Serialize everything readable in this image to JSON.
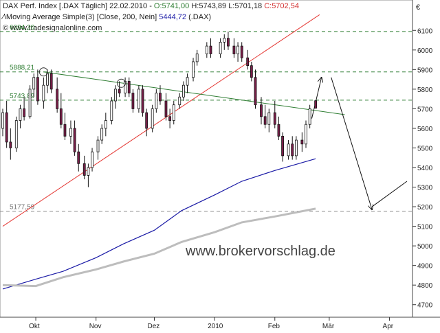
{
  "header": {
    "instrument": "DAX Perf. Index [.DAX  Täglich] 22.02.2010 - ",
    "open": "O:5741,00",
    "high": "H:5743,89",
    "low": "L:5701,18",
    "close": "C:5702,54",
    "ma_line": "Moving Average Simple(3) [Close, 200, Nein] ",
    "ma_value": "5444,72",
    "ma_tail": " (.DAX)",
    "copyright": "© www.tradesignalonline.com",
    "currency_symbol": "€"
  },
  "watermark": "www.brokervorschlag.de",
  "chart_data": {
    "type": "candlestick",
    "ylim": [
      4650,
      6150
    ],
    "ytick_values": [
      6100,
      6000,
      5900,
      5800,
      5700,
      5600,
      5500,
      5400,
      5300,
      5200,
      5100,
      5000,
      4900,
      4800,
      4700
    ],
    "ytick_labels": [
      "6100",
      "6000",
      "5900",
      "5800",
      "5700",
      "5600",
      "5500",
      "5400",
      "5300",
      "5200",
      "5100",
      "5000",
      "4900",
      "4800",
      "4700"
    ],
    "xtick_labels": [
      "Okt",
      "Nov",
      "Dez",
      "2010",
      "Feb",
      "Mär",
      "Apr"
    ],
    "xtick_dates": [
      "2009-10-01",
      "2009-11-01",
      "2009-12-01",
      "2010-01-01",
      "2010-02-01",
      "2010-03-01",
      "2010-04-01"
    ],
    "x_range": [
      "2009-09-14",
      "2010-04-10"
    ],
    "levels": [
      {
        "value": 6094.2,
        "label": "6094,20",
        "color": "#2e7d32",
        "style": "dashed"
      },
      {
        "value": 5888.21,
        "label": "5888,21",
        "color": "#2e7d32",
        "style": "dashed"
      },
      {
        "value": 5743.89,
        "label": "5743,89",
        "color": "#2e7d32",
        "style": "dashed"
      },
      {
        "value": 5177.59,
        "label": "5177,59",
        "color": "#888888",
        "style": "dashed"
      }
    ],
    "candles": [
      {
        "date": "2009-09-14",
        "o": 5600,
        "h": 5700,
        "l": 5560,
        "c": 5680
      },
      {
        "date": "2009-09-16",
        "o": 5680,
        "h": 5740,
        "l": 5500,
        "c": 5530
      },
      {
        "date": "2009-09-18",
        "o": 5530,
        "h": 5600,
        "l": 5440,
        "c": 5500
      },
      {
        "date": "2009-09-21",
        "o": 5500,
        "h": 5660,
        "l": 5480,
        "c": 5640
      },
      {
        "date": "2009-09-23",
        "o": 5640,
        "h": 5720,
        "l": 5600,
        "c": 5700
      },
      {
        "date": "2009-09-25",
        "o": 5700,
        "h": 5760,
        "l": 5640,
        "c": 5660
      },
      {
        "date": "2009-09-28",
        "o": 5660,
        "h": 5820,
        "l": 5650,
        "c": 5800
      },
      {
        "date": "2009-09-30",
        "o": 5800,
        "h": 5880,
        "l": 5760,
        "c": 5860
      },
      {
        "date": "2009-10-02",
        "o": 5860,
        "h": 5900,
        "l": 5720,
        "c": 5740
      },
      {
        "date": "2009-10-05",
        "o": 5740,
        "h": 5860,
        "l": 5700,
        "c": 5820
      },
      {
        "date": "2009-10-07",
        "o": 5820,
        "h": 5900,
        "l": 5780,
        "c": 5880
      },
      {
        "date": "2009-10-09",
        "o": 5880,
        "h": 5900,
        "l": 5780,
        "c": 5800
      },
      {
        "date": "2009-10-12",
        "o": 5800,
        "h": 5860,
        "l": 5680,
        "c": 5700
      },
      {
        "date": "2009-10-14",
        "o": 5700,
        "h": 5780,
        "l": 5600,
        "c": 5620
      },
      {
        "date": "2009-10-16",
        "o": 5620,
        "h": 5680,
        "l": 5540,
        "c": 5560
      },
      {
        "date": "2009-10-19",
        "o": 5560,
        "h": 5640,
        "l": 5520,
        "c": 5600
      },
      {
        "date": "2009-10-21",
        "o": 5600,
        "h": 5640,
        "l": 5460,
        "c": 5480
      },
      {
        "date": "2009-10-23",
        "o": 5480,
        "h": 5520,
        "l": 5380,
        "c": 5420
      },
      {
        "date": "2009-10-26",
        "o": 5420,
        "h": 5460,
        "l": 5340,
        "c": 5360
      },
      {
        "date": "2009-10-28",
        "o": 5360,
        "h": 5420,
        "l": 5300,
        "c": 5400
      },
      {
        "date": "2009-10-30",
        "o": 5400,
        "h": 5500,
        "l": 5380,
        "c": 5480
      },
      {
        "date": "2009-11-02",
        "o": 5480,
        "h": 5560,
        "l": 5440,
        "c": 5540
      },
      {
        "date": "2009-11-04",
        "o": 5540,
        "h": 5620,
        "l": 5520,
        "c": 5600
      },
      {
        "date": "2009-11-06",
        "o": 5600,
        "h": 5680,
        "l": 5560,
        "c": 5640
      },
      {
        "date": "2009-11-09",
        "o": 5640,
        "h": 5760,
        "l": 5620,
        "c": 5740
      },
      {
        "date": "2009-11-11",
        "o": 5740,
        "h": 5820,
        "l": 5700,
        "c": 5800
      },
      {
        "date": "2009-11-13",
        "o": 5800,
        "h": 5840,
        "l": 5760,
        "c": 5780
      },
      {
        "date": "2009-11-16",
        "o": 5780,
        "h": 5860,
        "l": 5760,
        "c": 5840
      },
      {
        "date": "2009-11-18",
        "o": 5840,
        "h": 5860,
        "l": 5760,
        "c": 5780
      },
      {
        "date": "2009-11-20",
        "o": 5780,
        "h": 5800,
        "l": 5680,
        "c": 5700
      },
      {
        "date": "2009-11-23",
        "o": 5700,
        "h": 5820,
        "l": 5680,
        "c": 5800
      },
      {
        "date": "2009-11-25",
        "o": 5800,
        "h": 5820,
        "l": 5660,
        "c": 5680
      },
      {
        "date": "2009-11-27",
        "o": 5680,
        "h": 5700,
        "l": 5560,
        "c": 5600
      },
      {
        "date": "2009-11-30",
        "o": 5600,
        "h": 5720,
        "l": 5580,
        "c": 5700
      },
      {
        "date": "2009-12-02",
        "o": 5700,
        "h": 5800,
        "l": 5680,
        "c": 5780
      },
      {
        "date": "2009-12-04",
        "o": 5780,
        "h": 5820,
        "l": 5720,
        "c": 5740
      },
      {
        "date": "2009-12-07",
        "o": 5740,
        "h": 5780,
        "l": 5640,
        "c": 5660
      },
      {
        "date": "2009-12-09",
        "o": 5660,
        "h": 5700,
        "l": 5600,
        "c": 5640
      },
      {
        "date": "2009-12-11",
        "o": 5640,
        "h": 5740,
        "l": 5620,
        "c": 5720
      },
      {
        "date": "2009-12-14",
        "o": 5720,
        "h": 5780,
        "l": 5700,
        "c": 5760
      },
      {
        "date": "2009-12-16",
        "o": 5760,
        "h": 5840,
        "l": 5740,
        "c": 5820
      },
      {
        "date": "2009-12-18",
        "o": 5820,
        "h": 5880,
        "l": 5780,
        "c": 5860
      },
      {
        "date": "2009-12-21",
        "o": 5860,
        "h": 5960,
        "l": 5840,
        "c": 5940
      },
      {
        "date": "2009-12-23",
        "o": 5940,
        "h": 6000,
        "l": 5920,
        "c": 5980
      },
      {
        "date": "2009-12-28",
        "o": 5980,
        "h": 6040,
        "l": 5960,
        "c": 6020
      },
      {
        "date": "2009-12-30",
        "o": 6020,
        "h": 6060,
        "l": 5960,
        "c": 5980
      },
      {
        "date": "2010-01-04",
        "o": 5980,
        "h": 6060,
        "l": 5960,
        "c": 6040
      },
      {
        "date": "2010-01-06",
        "o": 6040,
        "h": 6080,
        "l": 6000,
        "c": 6060
      },
      {
        "date": "2010-01-08",
        "o": 6060,
        "h": 6094,
        "l": 6000,
        "c": 6020
      },
      {
        "date": "2010-01-11",
        "o": 6020,
        "h": 6060,
        "l": 5960,
        "c": 5980
      },
      {
        "date": "2010-01-13",
        "o": 5980,
        "h": 6040,
        "l": 5940,
        "c": 6020
      },
      {
        "date": "2010-01-15",
        "o": 6020,
        "h": 6040,
        "l": 5940,
        "c": 5960
      },
      {
        "date": "2010-01-18",
        "o": 5960,
        "h": 6000,
        "l": 5900,
        "c": 5920
      },
      {
        "date": "2010-01-20",
        "o": 5920,
        "h": 5940,
        "l": 5840,
        "c": 5860
      },
      {
        "date": "2010-01-22",
        "o": 5860,
        "h": 5900,
        "l": 5700,
        "c": 5720
      },
      {
        "date": "2010-01-25",
        "o": 5720,
        "h": 5760,
        "l": 5620,
        "c": 5660
      },
      {
        "date": "2010-01-27",
        "o": 5660,
        "h": 5720,
        "l": 5600,
        "c": 5620
      },
      {
        "date": "2010-01-29",
        "o": 5620,
        "h": 5700,
        "l": 5580,
        "c": 5680
      },
      {
        "date": "2010-02-01",
        "o": 5680,
        "h": 5740,
        "l": 5600,
        "c": 5620
      },
      {
        "date": "2010-02-03",
        "o": 5620,
        "h": 5660,
        "l": 5540,
        "c": 5560
      },
      {
        "date": "2010-02-05",
        "o": 5560,
        "h": 5580,
        "l": 5430,
        "c": 5460
      },
      {
        "date": "2010-02-08",
        "o": 5460,
        "h": 5540,
        "l": 5440,
        "c": 5520
      },
      {
        "date": "2010-02-10",
        "o": 5520,
        "h": 5560,
        "l": 5440,
        "c": 5460
      },
      {
        "date": "2010-02-12",
        "o": 5460,
        "h": 5560,
        "l": 5440,
        "c": 5540
      },
      {
        "date": "2010-02-15",
        "o": 5540,
        "h": 5580,
        "l": 5480,
        "c": 5520
      },
      {
        "date": "2010-02-17",
        "o": 5520,
        "h": 5640,
        "l": 5500,
        "c": 5620
      },
      {
        "date": "2010-02-19",
        "o": 5620,
        "h": 5720,
        "l": 5600,
        "c": 5700
      },
      {
        "date": "2010-02-22",
        "o": 5741,
        "h": 5744,
        "l": 5701,
        "c": 5703
      }
    ],
    "series": [
      {
        "name": "Moving Average Simple(3)",
        "color": "#1a1aa6",
        "points": [
          [
            "2009-09-14",
            4780
          ],
          [
            "2009-10-01",
            4830
          ],
          [
            "2009-10-15",
            4870
          ],
          [
            "2009-11-01",
            4940
          ],
          [
            "2009-11-15",
            5010
          ],
          [
            "2009-12-01",
            5080
          ],
          [
            "2009-12-15",
            5180
          ],
          [
            "2010-01-01",
            5260
          ],
          [
            "2010-01-15",
            5330
          ],
          [
            "2010-02-01",
            5385
          ],
          [
            "2010-02-22",
            5445
          ]
        ]
      },
      {
        "name": "",
        "color": "#bdbdbd",
        "points": [
          [
            "2009-09-14",
            4800
          ],
          [
            "2009-10-01",
            4795
          ],
          [
            "2009-10-15",
            4840
          ],
          [
            "2009-11-01",
            4880
          ],
          [
            "2009-11-15",
            4920
          ],
          [
            "2009-12-01",
            4960
          ],
          [
            "2009-12-15",
            5020
          ],
          [
            "2010-01-01",
            5070
          ],
          [
            "2010-01-15",
            5120
          ],
          [
            "2010-02-01",
            5150
          ],
          [
            "2010-02-22",
            5190
          ]
        ]
      }
    ],
    "drawings": [
      {
        "kind": "line",
        "color": "#e53935",
        "from": [
          "2009-09-14",
          5100
        ],
        "to": [
          "2010-02-24",
          6180
        ]
      },
      {
        "kind": "line",
        "color": "#2e7d32",
        "from": [
          "2009-10-05",
          5888
        ],
        "to": [
          "2010-03-09",
          5670
        ]
      },
      {
        "kind": "arrow",
        "color": "#111111",
        "from": [
          "2010-02-20",
          5650
        ],
        "to": [
          "2010-02-25",
          5860
        ]
      },
      {
        "kind": "arrow",
        "color": "#111111",
        "from": [
          "2010-03-02",
          5860
        ],
        "to": [
          "2010-03-23",
          5185
        ]
      },
      {
        "kind": "line",
        "color": "#111111",
        "from": [
          "2010-03-23",
          5200
        ],
        "to": [
          "2010-04-10",
          5330
        ]
      }
    ],
    "pivot_circles": [
      {
        "date": "2009-10-05",
        "value": 5888
      },
      {
        "date": "2009-11-14",
        "value": 5830
      }
    ]
  }
}
